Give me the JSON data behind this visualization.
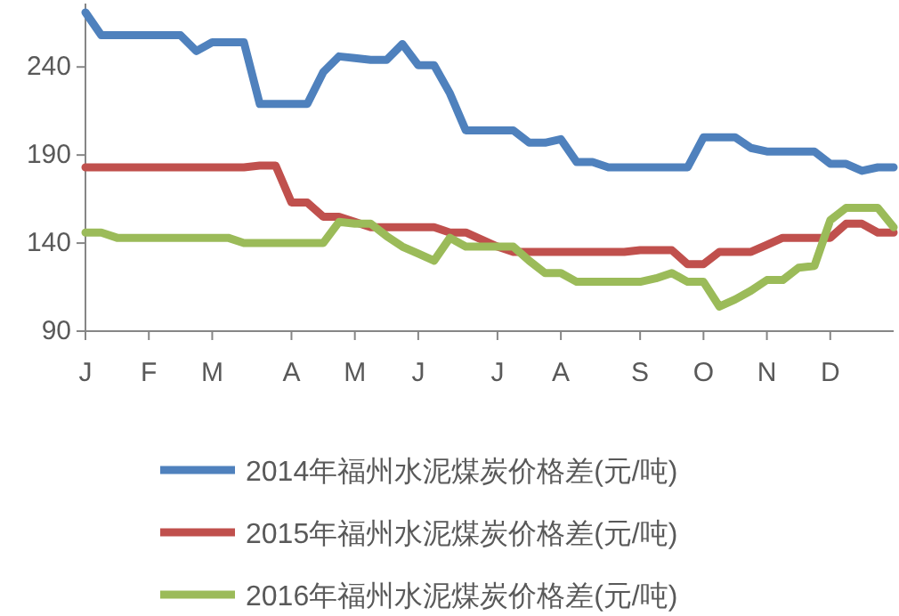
{
  "chart_data": {
    "type": "line",
    "legend": "bottom",
    "marker": "none",
    "line_style": "solid",
    "categories": [
      "J",
      null,
      null,
      null,
      "F",
      null,
      null,
      null,
      "M",
      null,
      null,
      null,
      null,
      "A",
      null,
      null,
      null,
      "M",
      null,
      null,
      null,
      "J",
      null,
      null,
      null,
      null,
      "J",
      null,
      null,
      null,
      "A",
      null,
      null,
      null,
      null,
      "S",
      null,
      null,
      null,
      "O",
      null,
      null,
      null,
      "N",
      null,
      null,
      null,
      "D",
      null,
      null,
      null,
      null
    ],
    "ylim": [
      90,
      276
    ],
    "yticks": [
      90,
      140,
      190,
      240
    ],
    "series": [
      {
        "name": "2014年福州水泥煤炭价格差(元/吨)",
        "color": "#4f81bd",
        "values": [
          271,
          258,
          258,
          258,
          258,
          258,
          258,
          249,
          254,
          254,
          254,
          219,
          219,
          219,
          219,
          237,
          246,
          245,
          244,
          244,
          253,
          241,
          241,
          225,
          204,
          204,
          204,
          204,
          197,
          197,
          199,
          186,
          186,
          183,
          183,
          183,
          183,
          183,
          183,
          200,
          200,
          200,
          194,
          192,
          192,
          192,
          192,
          185,
          185,
          181,
          183,
          183
        ]
      },
      {
        "name": "2015年福州水泥煤炭价格差(元/吨)",
        "color": "#c0504d",
        "values": [
          183,
          183,
          183,
          183,
          183,
          183,
          183,
          183,
          183,
          183,
          183,
          184,
          184,
          163,
          163,
          155,
          155,
          152,
          149,
          149,
          149,
          149,
          149,
          146,
          146,
          142,
          138,
          135,
          135,
          135,
          135,
          135,
          135,
          135,
          135,
          136,
          136,
          136,
          128,
          128,
          135,
          135,
          135,
          139,
          143,
          143,
          143,
          143,
          151,
          151,
          146,
          146
        ]
      },
      {
        "name": "2016年福州水泥煤炭价格差(元/吨)",
        "color": "#9bbb59",
        "values": [
          146,
          146,
          143,
          143,
          143,
          143,
          143,
          143,
          143,
          143,
          140,
          140,
          140,
          140,
          140,
          140,
          152,
          151,
          151,
          144,
          138,
          134,
          130,
          143,
          138,
          138,
          138,
          138,
          130,
          123,
          123,
          118,
          118,
          118,
          118,
          118,
          120,
          123,
          118,
          118,
          104,
          108,
          113,
          119,
          119,
          126,
          127,
          153,
          160,
          160,
          160,
          149
        ]
      }
    ]
  }
}
